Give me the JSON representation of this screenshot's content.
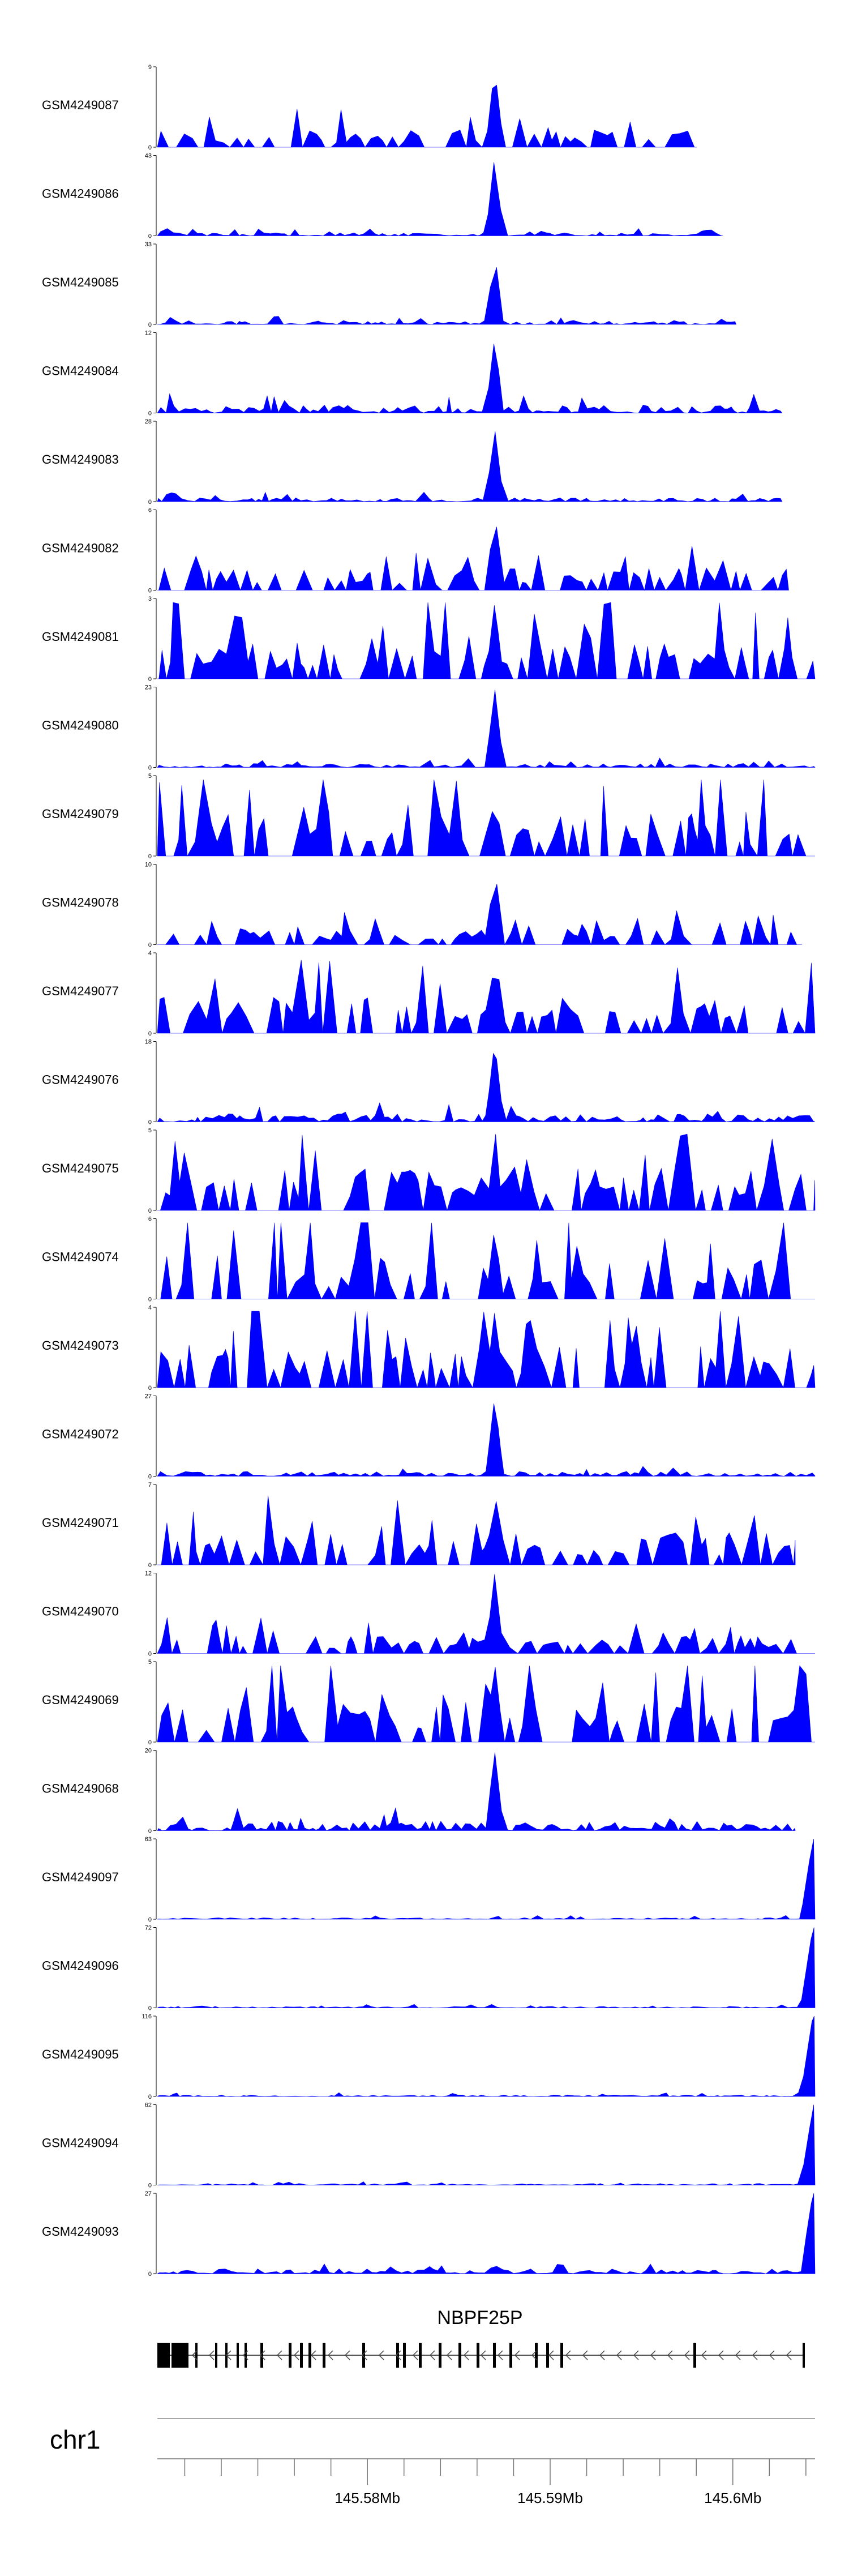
{
  "chart_data": {
    "type": "area",
    "color": "#0000ff",
    "axis_color": "#000000",
    "locus": {
      "chromosome": "chr1",
      "gene": "NBPF25P",
      "range": [
        145.5685,
        145.6045
      ],
      "ticks": [
        145.58,
        145.59,
        145.6
      ],
      "tick_labels": [
        "145.58Mb",
        "145.59Mb",
        "145.6Mb"
      ]
    },
    "tracks": [
      {
        "name": "GSM4249087",
        "ymax": 9,
        "ymax_label": "9",
        "peak_frac": 1.0,
        "background": 0.22,
        "bg_frac": 0.82,
        "profile": "spiky"
      },
      {
        "name": "GSM4249086",
        "ymax": 43,
        "ymax_label": "43",
        "peak_frac": 1.0,
        "background": 0.04,
        "bg_frac": 0.86,
        "profile": "flat"
      },
      {
        "name": "GSM4249085",
        "ymax": 33,
        "ymax_label": "33",
        "peak_frac": 0.9,
        "background": 0.05,
        "bg_frac": 0.88,
        "profile": "flat"
      },
      {
        "name": "GSM4249084",
        "ymax": 12,
        "ymax_label": "12",
        "peak_frac": 0.95,
        "background": 0.1,
        "bg_frac": 0.95,
        "profile": "flat"
      },
      {
        "name": "GSM4249083",
        "ymax": 28,
        "ymax_label": "28",
        "peak_frac": 0.92,
        "background": 0.05,
        "bg_frac": 0.95,
        "profile": "flat"
      },
      {
        "name": "GSM4249082",
        "ymax": 6,
        "ymax_label": "6",
        "peak_frac": 1.0,
        "background": 0.28,
        "bg_frac": 0.96,
        "profile": "spiky"
      },
      {
        "name": "GSM4249081",
        "ymax": 3,
        "ymax_label": "3",
        "peak_frac": 0.95,
        "background": 0.45,
        "bg_frac": 1.0,
        "profile": "spiky"
      },
      {
        "name": "GSM4249080",
        "ymax": 23,
        "ymax_label": "23",
        "peak_frac": 1.0,
        "background": 0.05,
        "bg_frac": 1.0,
        "profile": "flat"
      },
      {
        "name": "GSM4249079",
        "ymax": 5,
        "ymax_label": "5",
        "peak_frac": 0.75,
        "background": 0.55,
        "bg_frac": 1.0,
        "profile": "spiky"
      },
      {
        "name": "GSM4249078",
        "ymax": 10,
        "ymax_label": "10",
        "peak_frac": 1.0,
        "background": 0.2,
        "bg_frac": 0.98,
        "profile": "spiky"
      },
      {
        "name": "GSM4249077",
        "ymax": 4,
        "ymax_label": "4",
        "peak_frac": 0.95,
        "background": 0.45,
        "bg_frac": 1.0,
        "profile": "spiky"
      },
      {
        "name": "GSM4249076",
        "ymax": 18,
        "ymax_label": "18",
        "peak_frac": 1.0,
        "background": 0.1,
        "bg_frac": 1.0,
        "profile": "flat"
      },
      {
        "name": "GSM4249075",
        "ymax": 5,
        "ymax_label": "5",
        "peak_frac": 0.75,
        "background": 0.55,
        "bg_frac": 1.0,
        "profile": "spiky"
      },
      {
        "name": "GSM4249074",
        "ymax": 6,
        "ymax_label": "6",
        "peak_frac": 0.9,
        "background": 0.55,
        "bg_frac": 1.0,
        "profile": "spiky"
      },
      {
        "name": "GSM4249073",
        "ymax": 4,
        "ymax_label": "4",
        "peak_frac": 0.95,
        "background": 0.55,
        "bg_frac": 1.0,
        "profile": "spiky"
      },
      {
        "name": "GSM4249072",
        "ymax": 27,
        "ymax_label": "27",
        "peak_frac": 1.0,
        "background": 0.06,
        "bg_frac": 1.0,
        "profile": "flat"
      },
      {
        "name": "GSM4249071",
        "ymax": 7,
        "ymax_label": "7",
        "peak_frac": 0.95,
        "background": 0.4,
        "bg_frac": 0.97,
        "profile": "spiky"
      },
      {
        "name": "GSM4249070",
        "ymax": 12,
        "ymax_label": "12",
        "peak_frac": 1.0,
        "background": 0.22,
        "bg_frac": 1.0,
        "profile": "spiky"
      },
      {
        "name": "GSM4249069",
        "ymax": 5,
        "ymax_label": "5",
        "peak_frac": 1.0,
        "background": 0.5,
        "bg_frac": 1.0,
        "profile": "spiky"
      },
      {
        "name": "GSM4249068",
        "ymax": 20,
        "ymax_label": "20",
        "peak_frac": 1.0,
        "background": 0.12,
        "bg_frac": 0.97,
        "profile": "flat"
      },
      {
        "name": "GSM4249097",
        "ymax": 63,
        "ymax_label": "63",
        "peak_frac": 0.05,
        "background": 0.02,
        "bg_frac": 1.0,
        "profile": "end",
        "end_peak": 1.0
      },
      {
        "name": "GSM4249096",
        "ymax": 72,
        "ymax_label": "72",
        "peak_frac": 0.03,
        "background": 0.02,
        "bg_frac": 1.0,
        "profile": "end",
        "end_peak": 1.0
      },
      {
        "name": "GSM4249095",
        "ymax": 116,
        "ymax_label": "116",
        "peak_frac": 0.02,
        "background": 0.02,
        "bg_frac": 1.0,
        "profile": "end",
        "end_peak": 1.0
      },
      {
        "name": "GSM4249094",
        "ymax": 62,
        "ymax_label": "62",
        "peak_frac": 0.03,
        "background": 0.02,
        "bg_frac": 1.0,
        "profile": "end",
        "end_peak": 0.95
      },
      {
        "name": "GSM4249093",
        "ymax": 27,
        "ymax_label": "27",
        "peak_frac": 0.12,
        "background": 0.06,
        "bg_frac": 1.0,
        "profile": "end",
        "end_peak": 1.0
      }
    ]
  }
}
